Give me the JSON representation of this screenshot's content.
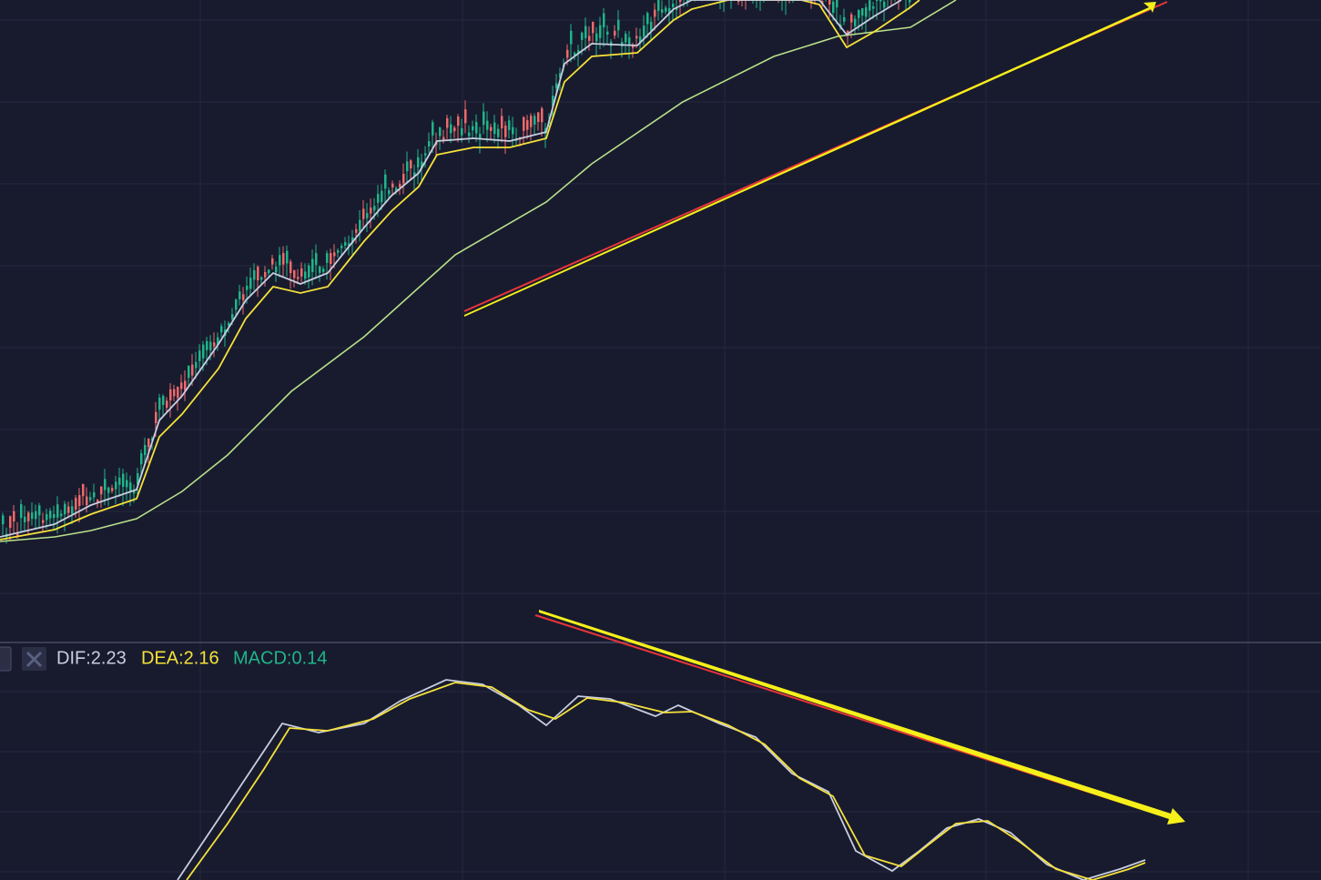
{
  "indicator_legend": {
    "dif": "DIF:2.23",
    "dea": "DEA:2.16",
    "macd": "MACD:0.14"
  }
}
